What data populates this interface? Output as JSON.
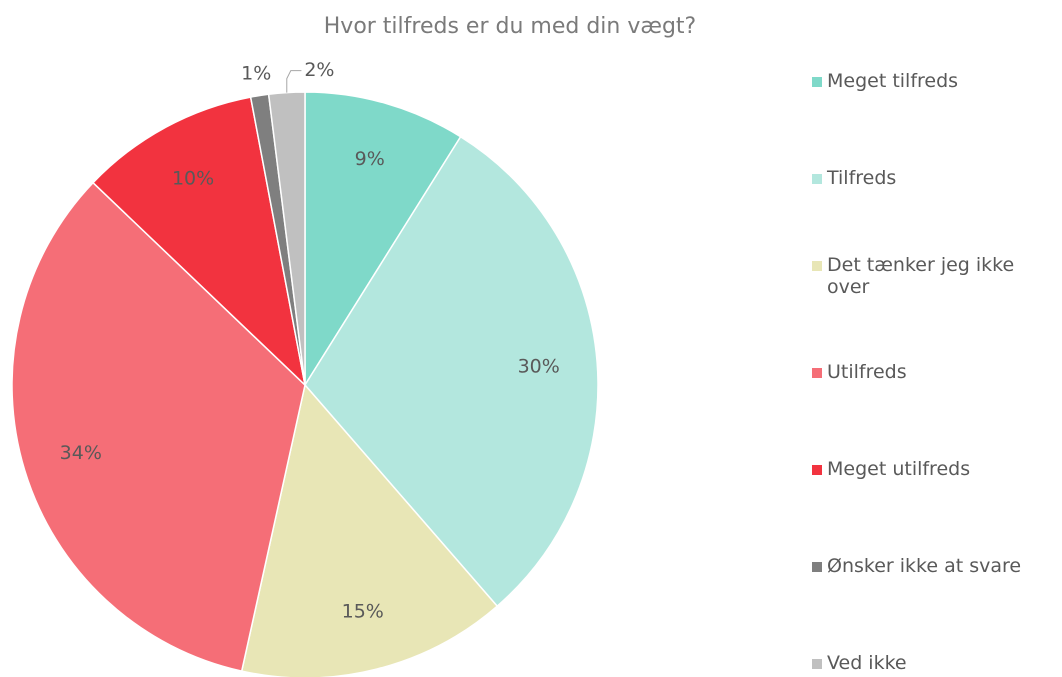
{
  "chart_data": {
    "type": "pie",
    "title": "Hvor tilfreds er du med din vægt?",
    "categories": [
      "Meget tilfreds",
      "Tilfreds",
      "Det tænker jeg ikke over",
      "Utilfreds",
      "Meget utilfreds",
      "Ønsker ikke at svare",
      "Ved ikke"
    ],
    "values": [
      9,
      30,
      15,
      34,
      10,
      1,
      2
    ],
    "value_labels": [
      "9%",
      "30%",
      "15%",
      "34%",
      "10%",
      "1%",
      "2%"
    ],
    "colors": [
      "#7fd9c9",
      "#b3e7de",
      "#e8e6b6",
      "#f56e77",
      "#f2333f",
      "#7f7f7f",
      "#c0c0c0"
    ],
    "legend": "right"
  }
}
